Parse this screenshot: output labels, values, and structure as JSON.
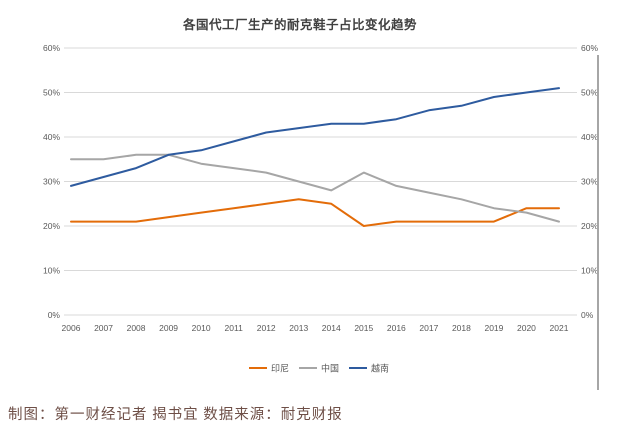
{
  "chart_data": {
    "type": "line",
    "title": "各国代工厂生产的耐克鞋子占比变化趋势",
    "x": [
      2006,
      2007,
      2008,
      2009,
      2010,
      2011,
      2012,
      2013,
      2014,
      2015,
      2016,
      2017,
      2018,
      2019,
      2020,
      2021
    ],
    "series": [
      {
        "id": "indonesia",
        "name": "印尼",
        "color": "#E36C09",
        "values": [
          21,
          21,
          21,
          22,
          23,
          24,
          25,
          26,
          25,
          20,
          21,
          21,
          21,
          21,
          24,
          24
        ]
      },
      {
        "id": "china",
        "name": "中国",
        "color": "#A6A6A6",
        "values": [
          35,
          35,
          36,
          36,
          34,
          33,
          32,
          30,
          28,
          32,
          29,
          27.5,
          26,
          24,
          23,
          21
        ]
      },
      {
        "id": "vietnam",
        "name": "越南",
        "color": "#2E5B9F",
        "values": [
          29,
          31,
          33,
          36,
          37,
          39,
          41,
          42,
          43,
          43,
          44,
          46,
          47,
          49,
          50,
          51
        ]
      }
    ],
    "ylim": [
      0,
      60
    ],
    "ytick_step": 10,
    "yticks": [
      "0%",
      "10%",
      "20%",
      "30%",
      "40%",
      "50%",
      "60%"
    ],
    "ytick_format": "percent",
    "y_axis_sides": "both",
    "grid": true,
    "gridline_color": "#d9d9d9",
    "tick_label_color": "#595959",
    "legend_position": "bottom",
    "legend": [
      "印尼",
      "中国",
      "越南"
    ]
  },
  "caption": "制图：第一财经记者 揭书宜 数据来源：耐克财报"
}
